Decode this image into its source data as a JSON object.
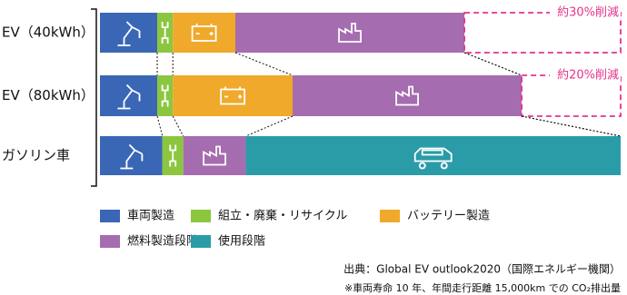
{
  "chart_data": {
    "type": "stacked-bar-horizontal",
    "categories": [
      "EV（40kWh）",
      "EV（80kWh）",
      "ガソリン車"
    ],
    "series": [
      {
        "name": "車両製造",
        "color": "#3a67b5",
        "values": [
          11,
          11,
          12
        ]
      },
      {
        "name": "組立・廃棄・リサイクル",
        "color": "#8cc63f",
        "values": [
          3,
          3,
          4
        ]
      },
      {
        "name": "バッテリー製造",
        "color": "#f0a92a",
        "values": [
          12,
          23,
          null
        ]
      },
      {
        "name": "燃料製造段階",
        "color": "#a66cb0",
        "values": [
          44,
          44,
          12
        ]
      },
      {
        "name": "使用段階",
        "color": "#2a9ca8",
        "values": [
          null,
          null,
          72
        ]
      }
    ],
    "xlim": [
      0,
      100
    ],
    "annotations": [
      "約30%削減",
      "約20%削減"
    ],
    "annotation_color": "#e4348b",
    "source": "出典：Global EV outlook2020（国際エネルギー機関）",
    "note": "※車両寿命 10 年、年間走行距離 15,000km での CO₂排出量"
  }
}
